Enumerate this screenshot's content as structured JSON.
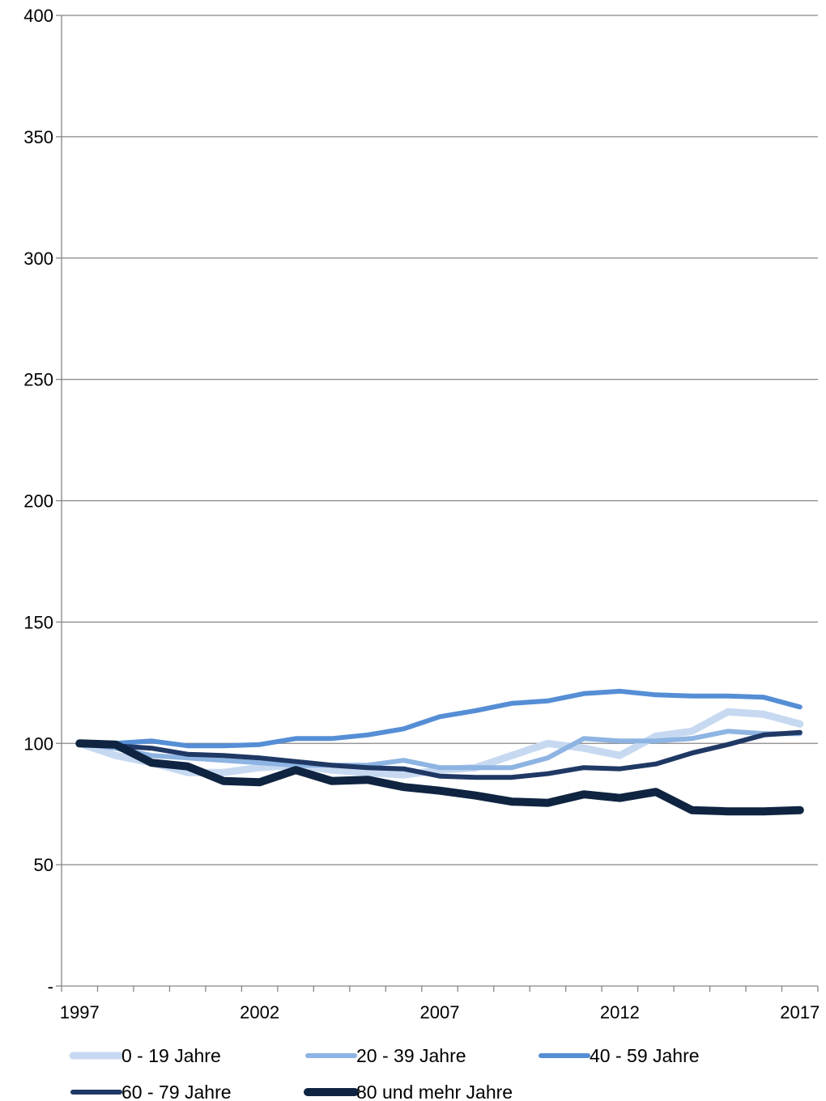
{
  "chart_data": {
    "type": "line",
    "title": "",
    "xlabel": "",
    "ylabel": "",
    "x": [
      1997,
      1998,
      1999,
      2000,
      2001,
      2002,
      2003,
      2004,
      2005,
      2006,
      2007,
      2008,
      2009,
      2010,
      2011,
      2012,
      2013,
      2014,
      2015,
      2016,
      2017
    ],
    "xlim": [
      1996.5,
      2017.5
    ],
    "ylim": [
      0,
      400
    ],
    "x_tick_labels": [
      "1997",
      "2002",
      "2007",
      "2012",
      "2017"
    ],
    "y_ticks": [
      0,
      50,
      100,
      150,
      200,
      250,
      300,
      350,
      400
    ],
    "y_tick_labels": [
      "-",
      "50",
      "100",
      "150",
      "200",
      "250",
      "300",
      "350",
      "400"
    ],
    "grid": "horizontal",
    "legend": "bottom",
    "series": [
      {
        "name": "0 - 19 Jahre",
        "color": "#c6d9f1",
        "values": [
          100,
          95,
          92,
          88,
          88,
          90,
          91,
          89,
          88,
          87,
          89,
          90,
          95,
          100,
          98,
          95,
          103,
          105,
          113,
          112,
          108
        ]
      },
      {
        "name": "20 - 39 Jahre",
        "color": "#8db4e2",
        "values": [
          100,
          98,
          95,
          94,
          93,
          92,
          91,
          91,
          91,
          93,
          90,
          90,
          90,
          94,
          102,
          101,
          101,
          102,
          105,
          104,
          104
        ]
      },
      {
        "name": "40 - 59 Jahre",
        "color": "#558ed5",
        "values": [
          100,
          100,
          101,
          99,
          99,
          99.5,
          102,
          102,
          103.5,
          106,
          111,
          113.5,
          116.5,
          117.5,
          120.5,
          121.5,
          120,
          119.5,
          119.5,
          119,
          115
        ]
      },
      {
        "name": "60 - 79 Jahre",
        "color": "#1f3864",
        "values": [
          100,
          99,
          98,
          95.5,
          95,
          94,
          92.5,
          91,
          90,
          89.5,
          86.5,
          86,
          86,
          87.5,
          90,
          89.5,
          91.5,
          96,
          99.5,
          103.5,
          104.5
        ]
      },
      {
        "name": "80 und mehr Jahre",
        "color": "#0f2440",
        "values": [
          100,
          99.5,
          92,
          90.5,
          84.5,
          84,
          89,
          84.5,
          85,
          82,
          80.5,
          78.5,
          76,
          75.5,
          79,
          77.5,
          80,
          72.5,
          72,
          72,
          72.5
        ]
      }
    ]
  }
}
